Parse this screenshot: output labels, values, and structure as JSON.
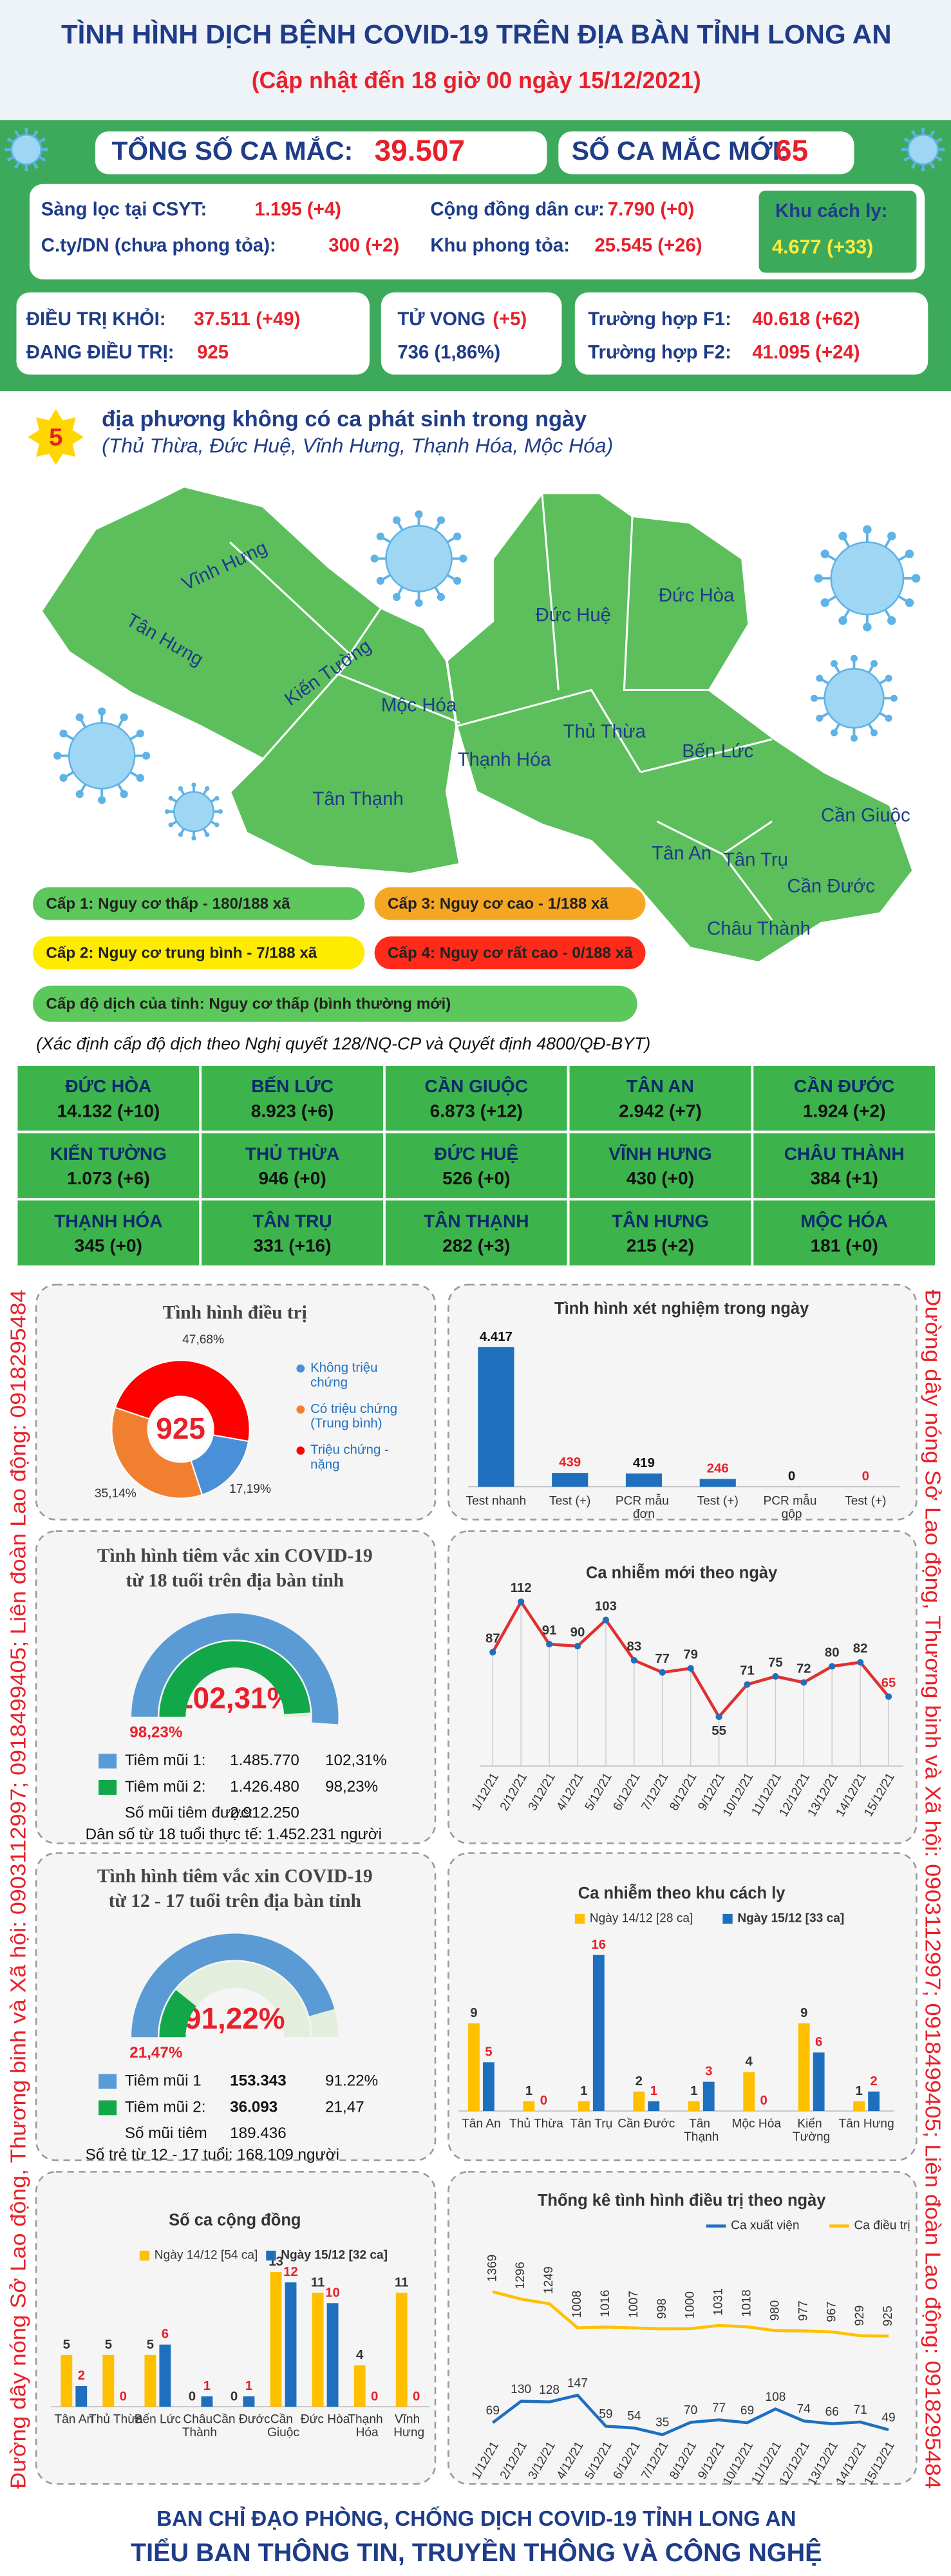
{
  "header": {
    "title": "TÌNH HÌNH DỊCH BỆNH COVID-19 TRÊN ĐỊA BÀN TỈNH LONG AN",
    "subtitle": "(Cập nhật đến 18 giờ 00 ngày 15/12/2021)"
  },
  "summary": {
    "total": {
      "label": "TỔNG SỐ CA MẮC:",
      "value": "39.507"
    },
    "new": {
      "label": "SỐ CA MẮC MỚI:",
      "value": "65"
    },
    "sources": [
      {
        "label": "Sàng lọc tại CSYT:",
        "value": "1.195 (+4)"
      },
      {
        "label": "Cộng đồng dân cư:",
        "value": "7.790 (+0)"
      },
      {
        "label": "C.ty/DN (chưa phong tỏa):",
        "value": "300 (+2)"
      },
      {
        "label": "Khu phong tỏa:",
        "value": "25.545 (+26)"
      },
      {
        "label": "Khu cách ly:",
        "value": "4.677 (+33)"
      }
    ],
    "recovered": {
      "label": "ĐIỀU TRỊ KHỎI:",
      "value": "37.511 (+49)"
    },
    "treating": {
      "label": "ĐANG ĐIỀU TRỊ:",
      "value": "925"
    },
    "deaths": {
      "label": "TỬ VONG",
      "new": "(+5)",
      "value": "736 (1,86%)"
    },
    "f1": {
      "label": "Trường hợp F1:",
      "value": "40.618 (+62)"
    },
    "f2": {
      "label": "Trường hợp F2:",
      "value": "41.095 (+24)"
    }
  },
  "no_new_cases": {
    "count": "5",
    "text": "địa phương không có ca phát sinh trong ngày",
    "districts": "(Thủ Thừa, Đức Huệ, Vĩnh Hưng, Thạnh Hóa, Mộc Hóa)"
  },
  "map": {
    "labels": [
      "Vĩnh Hưng",
      "Tân Hưng",
      "Kiến Tường",
      "Mộc Hóa",
      "Tân Thạnh",
      "Thạnh Hóa",
      "Đức Huệ",
      "Đức Hòa",
      "Thủ Thừa",
      "Bến Lức",
      "Tân An",
      "Tân Trụ",
      "Châu Thành",
      "Cần Đước",
      "Cần Giuộc"
    ]
  },
  "levels": {
    "items": [
      "Cấp 1: Nguy cơ thấp - 180/188 xã",
      "Cấp 3: Nguy cơ cao - 1/188 xã",
      "Cấp 2: Nguy cơ trung bình - 7/188 xã",
      "Cấp 4: Nguy cơ rất cao - 0/188 xã"
    ],
    "colors": [
      "#5cc85c",
      "#f5a623",
      "#ffeb00",
      "#ff2a1a"
    ],
    "province": "Cấp độ dịch của tỉnh: Nguy cơ thấp (bình thường mới)",
    "note": "(Xác định cấp độ dịch theo Nghị quyết 128/NQ-CP và Quyết định 4800/QĐ-BYT)"
  },
  "districts": [
    {
      "name": "ĐỨC HÒA",
      "value": "14.132 (+10)"
    },
    {
      "name": "BẾN LỨC",
      "value": "8.923 (+6)"
    },
    {
      "name": "CẦN GIUỘC",
      "value": "6.873 (+12)"
    },
    {
      "name": "TÂN AN",
      "value": "2.942 (+7)"
    },
    {
      "name": "CẦN ĐƯỚC",
      "value": "1.924 (+2)"
    },
    {
      "name": "KIẾN TƯỜNG",
      "value": "1.073 (+6)"
    },
    {
      "name": "THỦ THỪA",
      "value": "946 (+0)"
    },
    {
      "name": "ĐỨC HUỆ",
      "value": "526 (+0)"
    },
    {
      "name": "VĨNH HƯNG",
      "value": "430 (+0)"
    },
    {
      "name": "CHÂU THÀNH",
      "value": "384 (+1)"
    },
    {
      "name": "THẠNH HÓA",
      "value": "345 (+0)"
    },
    {
      "name": "TÂN TRỤ",
      "value": "331 (+16)"
    },
    {
      "name": "TÂN THẠNH",
      "value": "282 (+3)"
    },
    {
      "name": "TÂN HƯNG",
      "value": "215 (+2)"
    },
    {
      "name": "MỘC HÓA",
      "value": "181 (+0)"
    }
  ],
  "hotline": {
    "left": "Đường dây nóng Sở Lao động, Thương binh và Xã hội: 0903112997; 0918499405; Liên đoàn Lao động: 0918295484",
    "right": "Đường dây nóng Sở Lao động, Thương binh và Xã hội: 0903112997; 0918499405; Liên đoàn Lao động: 0918295484"
  },
  "chart_data": [
    {
      "type": "donut",
      "title": "Tình hình điều trị",
      "center_label": "925",
      "categories": [
        "Không triệu chứng",
        "Có triệu chứng (Trung bình)",
        "Triệu chứng - nặng"
      ],
      "values": [
        17.19,
        35.14,
        47.68
      ],
      "value_labels": [
        "17,19%",
        "35,14%",
        "47,68%"
      ],
      "colors": [
        "#4a90d9",
        "#f08030",
        "#ff0000"
      ]
    },
    {
      "type": "bar",
      "title": "Tình hình xét nghiệm trong ngày",
      "categories": [
        "Test nhanh",
        "Test (+)",
        "PCR mẫu đơn",
        "Test (+)",
        "PCR mẫu gộp",
        "Test (+)"
      ],
      "values": [
        4417,
        439,
        419,
        246,
        0,
        0
      ],
      "value_labels": [
        "4.417",
        "439",
        "419",
        "246",
        "0",
        "0"
      ],
      "color": "#1f6fbf",
      "label_colors": [
        "#111111",
        "#e8202a",
        "#111111",
        "#e8202a",
        "#111111",
        "#e8202a"
      ]
    },
    {
      "type": "gauge",
      "title": "Tình hình tiêm vắc xin COVID-19",
      "subtitle": "từ 18 tuổi trên địa bàn tỉnh",
      "series": [
        {
          "name": "Tiêm mũi 1:",
          "color": "#5b9bd5",
          "values": [
            102.31
          ],
          "value_labels": [
            "102,31%"
          ],
          "count": "1.485.770",
          "share": "102,31%"
        },
        {
          "name": "Tiêm mũi 2:",
          "color": "#12a84a",
          "values": [
            98.23
          ],
          "value_labels": [
            "98,23%"
          ],
          "count": "1.426.480",
          "share": "98,23%"
        }
      ],
      "doses": {
        "label": "Số mũi tiêm được:",
        "value": "2.912.250"
      },
      "population": "Dân số từ 18 tuổi thực tế: 1.452.231 người"
    },
    {
      "type": "gauge",
      "title": "Tình hình tiêm vắc xin COVID-19",
      "subtitle": "từ 12 - 17 tuổi trên địa bàn tỉnh",
      "series": [
        {
          "name": "Tiêm mũi 1",
          "color": "#5b9bd5",
          "values": [
            91.22
          ],
          "value_labels": [
            "91,22%"
          ],
          "count": "153.343",
          "share": "91.22%"
        },
        {
          "name": "Tiêm mũi 2:",
          "color": "#12a84a",
          "values": [
            21.47
          ],
          "value_labels": [
            "21,47%"
          ],
          "count": "36.093",
          "share": "21,47"
        }
      ],
      "doses": {
        "label": "Số mũi tiêm",
        "value": "189.436"
      },
      "population": "Số trẻ từ 12 - 17 tuổi: 168.109 người"
    },
    {
      "type": "line",
      "title": "Ca nhiễm mới theo ngày",
      "categories": [
        "1/12/21",
        "2/12/21",
        "3/12/21",
        "4/12/21",
        "5/12/21",
        "6/12/21",
        "7/12/21",
        "8/12/21",
        "9/12/21",
        "10/12/21",
        "11/12/21",
        "12/12/21",
        "13/12/21",
        "14/12/21",
        "15/12/21"
      ],
      "values": [
        87,
        112,
        91,
        90,
        103,
        83,
        77,
        79,
        55,
        71,
        75,
        72,
        80,
        82,
        65
      ],
      "color": "#e03030",
      "marker_color": "#1f6fbf"
    },
    {
      "type": "grouped_bar",
      "title": "Ca nhiễm theo khu cách ly",
      "categories": [
        "Tân An",
        "Thủ Thừa",
        "Tân Trụ",
        "Cần Đước",
        "Tân Thạnh",
        "Mộc Hóa",
        "Kiến Tường",
        "Tân Hưng"
      ],
      "series": [
        {
          "name": "Ngày 14/12 [28 ca]",
          "color": "#ffc000",
          "values": [
            9,
            1,
            1,
            2,
            1,
            4,
            9,
            1
          ]
        },
        {
          "name": "Ngày 15/12 [33 ca]",
          "color": "#1f6fbf",
          "values": [
            5,
            0,
            16,
            1,
            3,
            0,
            6,
            2
          ]
        }
      ]
    },
    {
      "type": "grouped_bar",
      "title": "Số ca cộng đồng",
      "categories": [
        "Tân An",
        "Thủ Thừa",
        "Bến Lức",
        "Châu Thành",
        "Cần Đước",
        "Cần Giuộc",
        "Đức Hòa",
        "Thạnh Hóa",
        "Vĩnh Hưng"
      ],
      "series": [
        {
          "name": "Ngày 14/12 [54 ca]",
          "color": "#ffc000",
          "values": [
            5,
            5,
            5,
            0,
            0,
            13,
            11,
            4,
            11
          ]
        },
        {
          "name": "Ngày 15/12 [32 ca]",
          "color": "#1f6fbf",
          "values": [
            2,
            0,
            6,
            1,
            1,
            12,
            10,
            0,
            0
          ]
        }
      ]
    },
    {
      "type": "dual_line",
      "title": "Thống kê tình hình điều trị theo ngày",
      "categories": [
        "1/12/21",
        "2/12/21",
        "3/12/21",
        "4/12/21",
        "5/12/21",
        "6/12/21",
        "7/12/21",
        "8/12/21",
        "9/12/21",
        "10/12/21",
        "11/12/21",
        "12/12/21",
        "13/12/21",
        "14/12/21",
        "15/12/21"
      ],
      "series": [
        {
          "name": "Ca xuất viện",
          "color": "#1f6fbf",
          "values": [
            69,
            130,
            128,
            147,
            59,
            54,
            35,
            70,
            77,
            69,
            108,
            74,
            66,
            71,
            49
          ]
        },
        {
          "name": "Ca điều trị",
          "color": "#ffc000",
          "values": [
            1369,
            1296,
            1249,
            1008,
            1016,
            1007,
            998,
            1000,
            1031,
            1018,
            980,
            977,
            967,
            929,
            925
          ]
        }
      ]
    }
  ],
  "footer": {
    "line1": "BAN CHỈ ĐẠO PHÒNG, CHỐNG DỊCH COVID-19 TỈNH LONG AN",
    "line2": "TIỂU BAN THÔNG TIN, TRUYỀN THÔNG VÀ CÔNG NGHỆ"
  }
}
